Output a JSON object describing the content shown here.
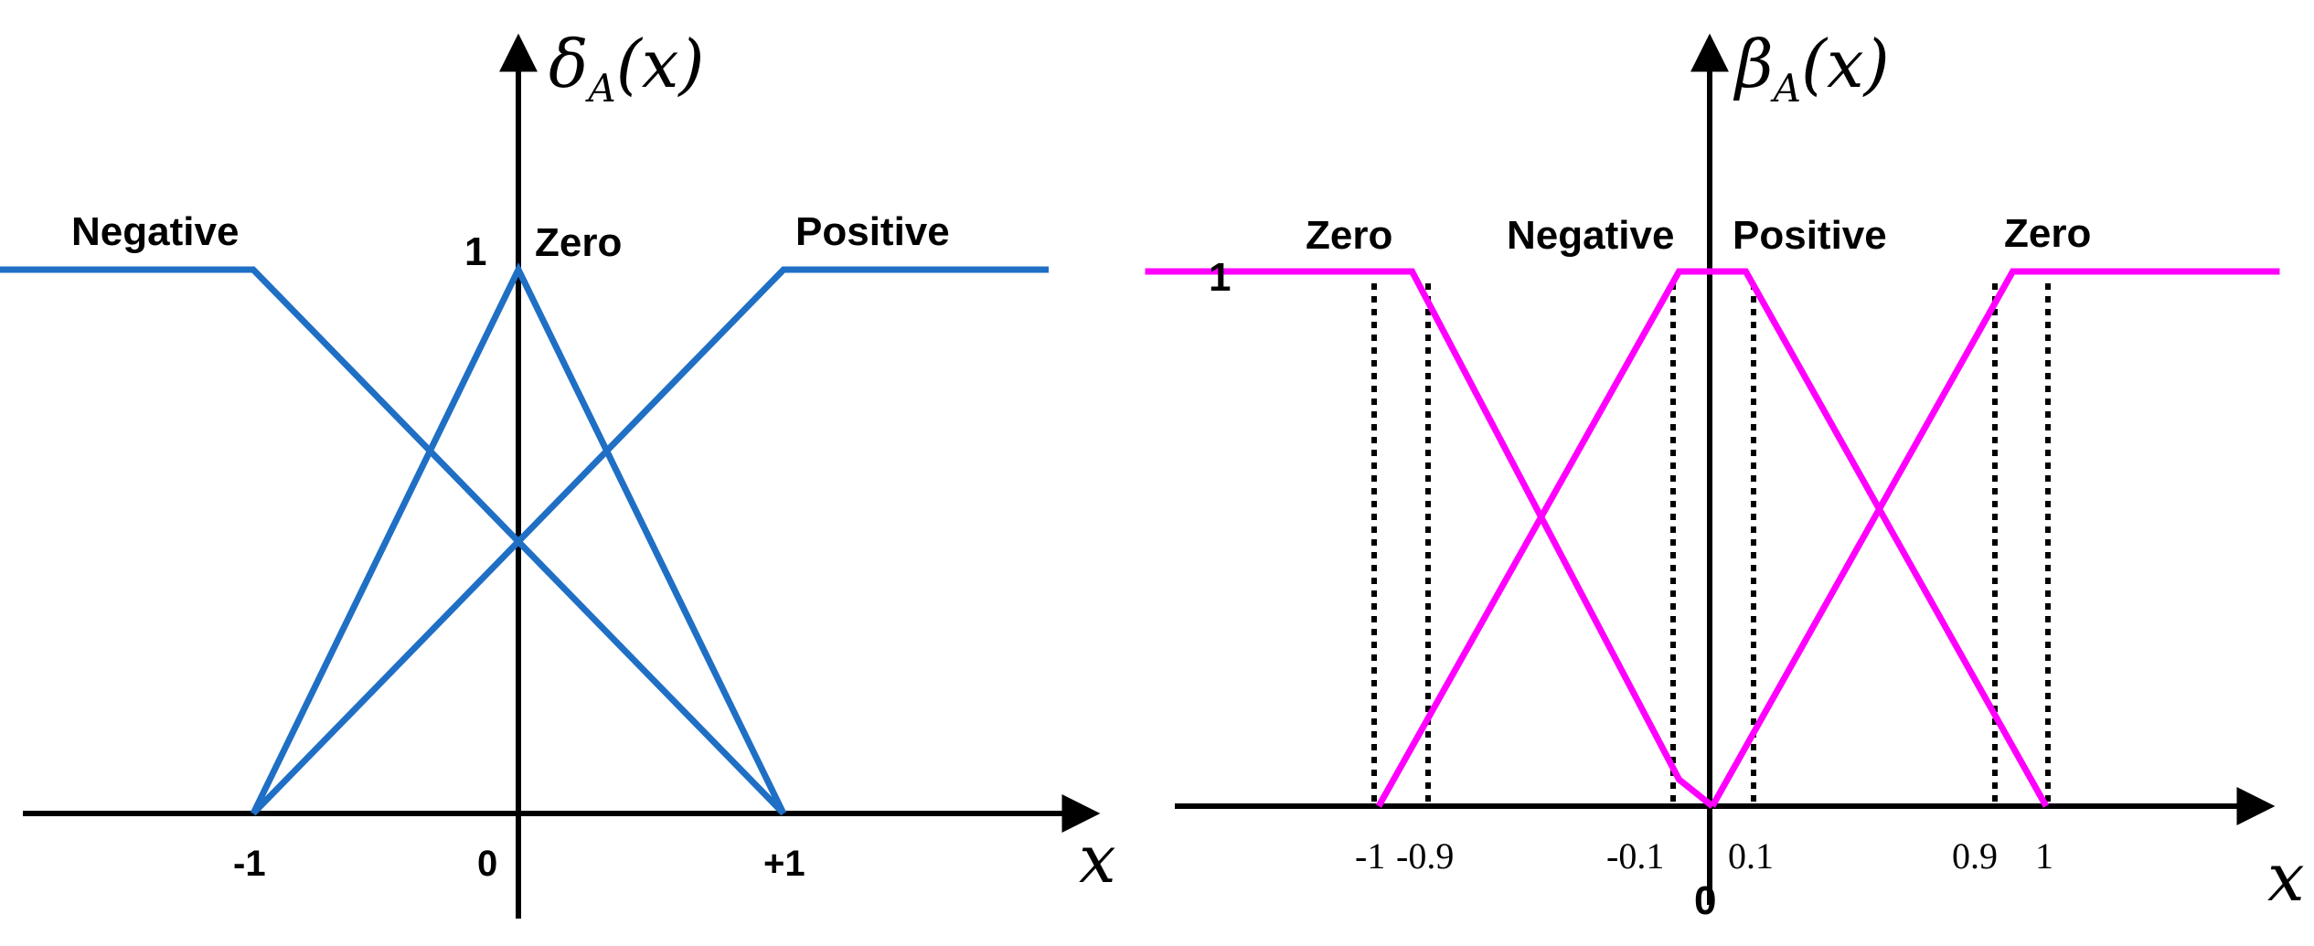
{
  "colors": {
    "left_curves": "#1f6fc5",
    "right_curves": "#ff00ff",
    "axes": "#000000"
  },
  "left_panel": {
    "y_axis_label": "δA(x)",
    "y_axis_symbol": "δ",
    "y_axis_subscript": "A",
    "y_axis_arg": "(x)",
    "x_axis_label": "x",
    "one_label": "1",
    "set_labels": {
      "negative": "Negative",
      "zero": "Zero",
      "positive": "Positive"
    },
    "ticks": {
      "minus_one": "-1",
      "zero": "0",
      "plus_one": "+1"
    },
    "functions": [
      {
        "name": "Negative",
        "points": [
          [
            -2,
            1
          ],
          [
            -1,
            1
          ],
          [
            1,
            0
          ]
        ]
      },
      {
        "name": "Zero",
        "points": [
          [
            -1,
            0
          ],
          [
            0,
            1
          ],
          [
            1,
            0
          ]
        ]
      },
      {
        "name": "Positive",
        "points": [
          [
            -1,
            0
          ],
          [
            1,
            1
          ],
          [
            2,
            1
          ]
        ]
      }
    ]
  },
  "right_panel": {
    "y_axis_label": "βA(x)",
    "y_axis_symbol": "β",
    "y_axis_subscript": "A",
    "y_axis_arg": "(x)",
    "x_axis_label": "x",
    "one_label": "1",
    "origin_label": "0",
    "set_labels": {
      "zero_left": "Zero",
      "negative": "Negative",
      "positive": "Positive",
      "zero_right": "Zero"
    },
    "ticks": {
      "m1": "-1",
      "m09": "-0.9",
      "m01": "-0.1",
      "p01": "0.1",
      "p09": "0.9",
      "p1": "1"
    },
    "functions": [
      {
        "name": "Zero / Negative",
        "points": [
          [
            -1.7,
            1
          ],
          [
            -0.9,
            1
          ],
          [
            -0.1,
            0.05
          ],
          [
            0,
            0
          ]
        ]
      },
      {
        "name": "Negative",
        "points": [
          [
            -1,
            0
          ],
          [
            -0.1,
            1
          ],
          [
            0.1,
            1
          ],
          [
            1,
            0
          ]
        ]
      },
      {
        "name": "Positive / Zero",
        "points": [
          [
            0,
            0
          ],
          [
            0.9,
            1
          ],
          [
            1.7,
            1
          ]
        ]
      }
    ]
  }
}
